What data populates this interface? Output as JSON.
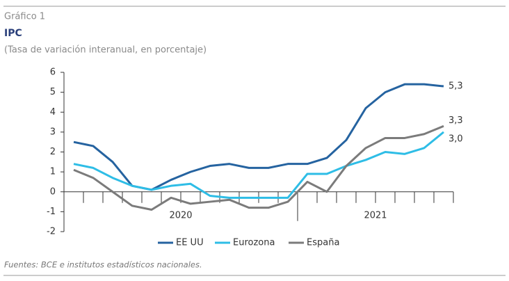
{
  "chart_data": {
    "type": "line",
    "label": "Gráfico 1",
    "title": "IPC",
    "subtitle": "(Tasa de variación interanual, en porcentaje)",
    "categories": [
      null,
      null,
      null,
      null,
      null,
      null,
      null,
      null,
      null,
      null,
      null,
      null,
      null,
      null,
      null,
      null,
      null,
      null,
      null,
      null
    ],
    "groups": [
      {
        "label": "2020",
        "start": 0,
        "end": 11
      },
      {
        "label": "2021",
        "start": 12,
        "end": 19
      }
    ],
    "series": [
      {
        "name": "EE UU",
        "color": "#2563a0",
        "values": [
          2.5,
          2.3,
          1.5,
          0.3,
          0.1,
          0.6,
          1.0,
          1.3,
          1.4,
          1.2,
          1.2,
          1.4,
          1.4,
          1.7,
          2.6,
          4.2,
          5.0,
          5.4,
          5.4,
          5.3
        ],
        "value_labels": [
          null,
          null,
          null,
          null,
          null,
          null,
          null,
          null,
          null,
          null,
          null,
          null,
          null,
          null,
          null,
          null,
          null,
          null,
          null,
          "5,3"
        ]
      },
      {
        "name": "Eurozona",
        "color": "#2ebde6",
        "values": [
          1.4,
          1.2,
          0.7,
          0.3,
          0.1,
          0.3,
          0.4,
          -0.2,
          -0.3,
          -0.3,
          -0.3,
          -0.3,
          0.9,
          0.9,
          1.3,
          1.6,
          2.0,
          1.9,
          2.2,
          3.0
        ],
        "value_labels": [
          null,
          null,
          null,
          null,
          null,
          null,
          null,
          null,
          null,
          null,
          null,
          null,
          null,
          null,
          null,
          null,
          null,
          null,
          null,
          "3,0"
        ]
      },
      {
        "name": "España",
        "color": "#7b7b7b",
        "values": [
          1.1,
          0.7,
          0.0,
          -0.7,
          -0.9,
          -0.3,
          -0.6,
          -0.5,
          -0.4,
          -0.8,
          -0.8,
          -0.5,
          0.5,
          0.0,
          1.3,
          2.2,
          2.7,
          2.7,
          2.9,
          3.3
        ],
        "value_labels": [
          null,
          null,
          null,
          null,
          null,
          null,
          null,
          null,
          null,
          null,
          null,
          null,
          null,
          null,
          null,
          null,
          null,
          null,
          null,
          "3,3"
        ]
      }
    ],
    "ylim": [
      -2,
      6
    ],
    "yticks": [
      -2,
      -1,
      0,
      1,
      2,
      3,
      4,
      5,
      6
    ],
    "legend": "bottom",
    "source": "Fuentes: BCE e institutos estadísticos nacionales."
  }
}
